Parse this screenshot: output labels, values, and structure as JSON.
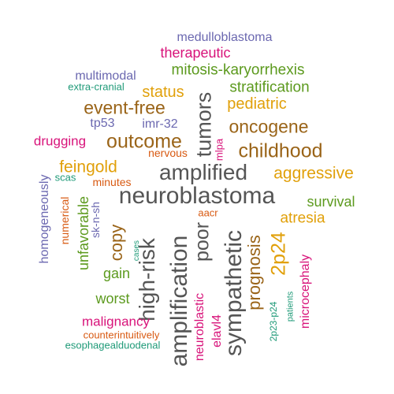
{
  "palette": {
    "gray": "#555555",
    "brown": "#9a6418",
    "amber": "#e1a00a",
    "green": "#5c9a1e",
    "magenta": "#d8137a",
    "purple": "#6b68b0",
    "teal": "#1f9a78",
    "orange": "#d85a12"
  },
  "words": [
    {
      "text": "neuroblastoma",
      "color": "#555555",
      "vertical": false
    },
    {
      "text": "amplified",
      "color": "#555555",
      "vertical": false
    },
    {
      "text": "amplification",
      "color": "#555555",
      "vertical": true
    },
    {
      "text": "sympathetic",
      "color": "#555555",
      "vertical": true
    },
    {
      "text": "high-risk",
      "color": "#555555",
      "vertical": true
    },
    {
      "text": "tumors",
      "color": "#555555",
      "vertical": true
    },
    {
      "text": "poor",
      "color": "#555555",
      "vertical": true
    },
    {
      "text": "outcome",
      "color": "#9a6418",
      "vertical": false
    },
    {
      "text": "childhood",
      "color": "#9a6418",
      "vertical": false
    },
    {
      "text": "event-free",
      "color": "#9a6418",
      "vertical": false
    },
    {
      "text": "oncogene",
      "color": "#9a6418",
      "vertical": false
    },
    {
      "text": "prognosis",
      "color": "#9a6418",
      "vertical": true
    },
    {
      "text": "copy",
      "color": "#9a6418",
      "vertical": true
    },
    {
      "text": "aggressive",
      "color": "#e1a00a",
      "vertical": false
    },
    {
      "text": "feingold",
      "color": "#e1a00a",
      "vertical": false
    },
    {
      "text": "pediatric",
      "color": "#e1a00a",
      "vertical": false
    },
    {
      "text": "status",
      "color": "#e1a00a",
      "vertical": false
    },
    {
      "text": "atresia",
      "color": "#e1a00a",
      "vertical": false
    },
    {
      "text": "2p24",
      "color": "#e1a00a",
      "vertical": true
    },
    {
      "text": "stratification",
      "color": "#5c9a1e",
      "vertical": false
    },
    {
      "text": "mitosis-karyorrhexis",
      "color": "#5c9a1e",
      "vertical": false
    },
    {
      "text": "survival",
      "color": "#5c9a1e",
      "vertical": false
    },
    {
      "text": "unfavorable",
      "color": "#5c9a1e",
      "vertical": true
    },
    {
      "text": "gain",
      "color": "#5c9a1e",
      "vertical": false
    },
    {
      "text": "worst",
      "color": "#5c9a1e",
      "vertical": false
    },
    {
      "text": "therapeutic",
      "color": "#d8137a",
      "vertical": false
    },
    {
      "text": "drugging",
      "color": "#d8137a",
      "vertical": false
    },
    {
      "text": "malignancy",
      "color": "#d8137a",
      "vertical": false
    },
    {
      "text": "microcephaly",
      "color": "#d8137a",
      "vertical": true
    },
    {
      "text": "neuroblastic",
      "color": "#d8137a",
      "vertical": true
    },
    {
      "text": "elavl4",
      "color": "#d8137a",
      "vertical": true
    },
    {
      "text": "mlpa",
      "color": "#d8137a",
      "vertical": true
    },
    {
      "text": "medulloblastoma",
      "color": "#6b68b0",
      "vertical": false
    },
    {
      "text": "multimodal",
      "color": "#6b68b0",
      "vertical": false
    },
    {
      "text": "tp53",
      "color": "#6b68b0",
      "vertical": false
    },
    {
      "text": "imr-32",
      "color": "#6b68b0",
      "vertical": false
    },
    {
      "text": "homogeneously",
      "color": "#6b68b0",
      "vertical": true
    },
    {
      "text": "sk-n-sh",
      "color": "#6b68b0",
      "vertical": true
    },
    {
      "text": "extra-cranial",
      "color": "#1f9a78",
      "vertical": false
    },
    {
      "text": "scas",
      "color": "#1f9a78",
      "vertical": false
    },
    {
      "text": "esophagealduodenal",
      "color": "#1f9a78",
      "vertical": false
    },
    {
      "text": "cases",
      "color": "#1f9a78",
      "vertical": true
    },
    {
      "text": "2p23-p24",
      "color": "#1f9a78",
      "vertical": true
    },
    {
      "text": "patients",
      "color": "#1f9a78",
      "vertical": true
    },
    {
      "text": "nervous",
      "color": "#d85a12",
      "vertical": false
    },
    {
      "text": "minutes",
      "color": "#d85a12",
      "vertical": false
    },
    {
      "text": "aacr",
      "color": "#d85a12",
      "vertical": false
    },
    {
      "text": "counterintuitively",
      "color": "#d85a12",
      "vertical": false
    },
    {
      "text": "numerical",
      "color": "#d85a12",
      "vertical": true
    }
  ]
}
